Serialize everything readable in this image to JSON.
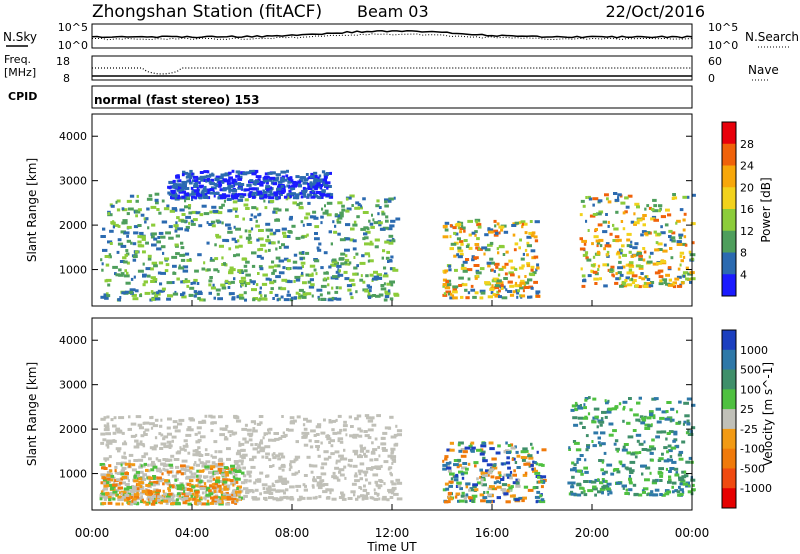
{
  "header": {
    "station": "Zhongshan Station (fitACF)",
    "beam": "Beam 03",
    "date": "22/Oct/2016"
  },
  "summary_panel": {
    "nsky_label": "N.Sky",
    "nsky_ticks": [
      "10^5",
      "10^0"
    ],
    "nsearch_label": "N.Search",
    "nsearch_ticks": [
      "10^5",
      "10^0"
    ],
    "freq_label": "Freq.",
    "freq_unit": "[MHz]",
    "freq_ticks": [
      "18",
      "8"
    ],
    "nave_label": "Nave",
    "nave_ticks": [
      "60",
      "0"
    ],
    "cpid_label": "CPID",
    "cpid_text": "normal (fast stereo) 153"
  },
  "chart_data": [
    {
      "type": "heatmap",
      "title": "",
      "quantity": "Power",
      "xlabel": "Time UT",
      "ylabel": "Slant Range [km]",
      "xlim_hours": [
        0,
        24
      ],
      "ylim_km": [
        180,
        4500
      ],
      "y_ticks": [
        "4000",
        "3000",
        "2000",
        "1000"
      ],
      "x_ticks": [
        "00:00",
        "04:00",
        "08:00",
        "12:00",
        "16:00",
        "20:00",
        "00:00"
      ],
      "colorbar": {
        "label": "Power [dB]",
        "ticks": [
          "28",
          "24",
          "20",
          "16",
          "12",
          "8",
          "4"
        ],
        "colors": [
          "#e8000b",
          "#f0620a",
          "#f7a70a",
          "#f2d21c",
          "#8ccc3a",
          "#4e9e5c",
          "#2b6ab0",
          "#1b1bff"
        ]
      },
      "echo_regions": [
        {
          "t0": 0.3,
          "t1": 12.2,
          "r0": 300,
          "r1": 2700,
          "level": "low-mid"
        },
        {
          "t0": 3.0,
          "t1": 9.5,
          "r0": 2600,
          "r1": 3200,
          "level": "low"
        },
        {
          "t0": 14.0,
          "t1": 17.8,
          "r0": 350,
          "r1": 2100,
          "level": "mid-high"
        },
        {
          "t0": 19.5,
          "t1": 24.0,
          "r0": 600,
          "r1": 2700,
          "level": "mid-high"
        }
      ]
    },
    {
      "type": "heatmap",
      "title": "",
      "quantity": "Velocity",
      "xlabel": "Time UT",
      "ylabel": "Slant Range [km]",
      "xlim_hours": [
        0,
        24
      ],
      "ylim_km": [
        180,
        4500
      ],
      "y_ticks": [
        "4000",
        "3000",
        "2000",
        "1000"
      ],
      "x_ticks": [
        "00:00",
        "04:00",
        "08:00",
        "12:00",
        "16:00",
        "20:00",
        "00:00"
      ],
      "colorbar": {
        "label": "Velocity [m s^-1]",
        "ticks": [
          "1000",
          "500",
          "100",
          "25",
          "-25",
          "-100",
          "-500",
          "-1000"
        ],
        "colors": [
          "#1b3fbf",
          "#2e78a8",
          "#3f8f6a",
          "#4fc040",
          "#c0c0b8",
          "#f29a14",
          "#f07a0a",
          "#f04a10",
          "#e60000"
        ]
      },
      "echo_regions": [
        {
          "t0": 0.3,
          "t1": 12.2,
          "r0": 400,
          "r1": 2300,
          "level": "ground-scatter"
        },
        {
          "t0": 0.3,
          "t1": 6.0,
          "r0": 300,
          "r1": 1200,
          "level": "negative"
        },
        {
          "t0": 14.0,
          "t1": 18.0,
          "r0": 350,
          "r1": 1700,
          "level": "mixed"
        },
        {
          "t0": 19.0,
          "t1": 24.0,
          "r0": 500,
          "r1": 2700,
          "level": "positive"
        }
      ]
    }
  ]
}
